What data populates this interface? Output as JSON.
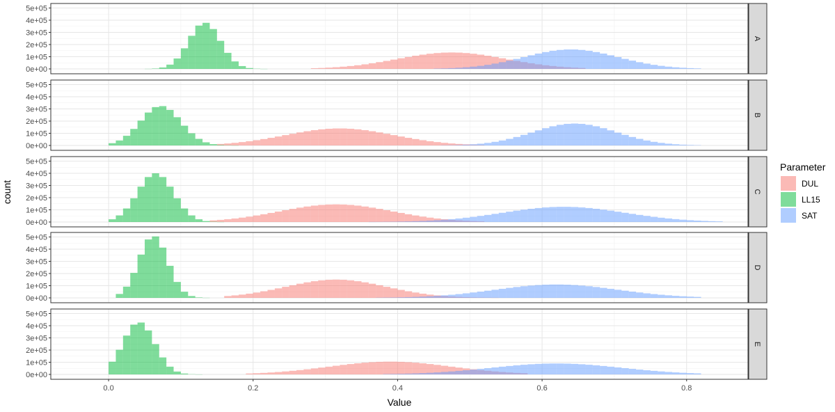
{
  "chart_data": {
    "type": "histogram",
    "xlabel": "Value",
    "ylabel": "count",
    "xlim": [
      -0.08,
      0.885
    ],
    "ylim": [
      0,
      520000
    ],
    "x_ticks": [
      0.0,
      0.2,
      0.4,
      0.6,
      0.8
    ],
    "x_tick_labels": [
      "0.0",
      "0.2",
      "0.4",
      "0.6",
      "0.8"
    ],
    "y_ticks": [
      0,
      100000,
      200000,
      300000,
      400000,
      500000
    ],
    "y_tick_labels": [
      "0e+00",
      "1e+05",
      "2e+05",
      "3e+05",
      "4e+05",
      "5e+05"
    ],
    "bin_width": 0.01,
    "grid": true,
    "legend": {
      "title": "Parameter",
      "position": "right",
      "entries": [
        {
          "name": "DUL",
          "color": "#F8766D"
        },
        {
          "name": "LL15",
          "color": "#00BA38"
        },
        {
          "name": "SAT",
          "color": "#619CFF"
        }
      ]
    },
    "fill_alpha": 0.5,
    "facets": [
      {
        "label": "A",
        "series": [
          {
            "name": "DUL",
            "mean": 0.475,
            "sd": 0.075,
            "peak": 135000,
            "min": 0.285,
            "max": 0.655
          },
          {
            "name": "LL15",
            "mean": 0.133,
            "sd": 0.022,
            "peak": 380000,
            "min": 0.055,
            "max": 0.215
          },
          {
            "name": "SAT",
            "mean": 0.64,
            "sd": 0.065,
            "peak": 160000,
            "min": 0.455,
            "max": 0.815
          }
        ]
      },
      {
        "label": "B",
        "series": [
          {
            "name": "DUL",
            "mean": 0.32,
            "sd": 0.075,
            "peak": 140000,
            "min": 0.15,
            "max": 0.52
          },
          {
            "name": "LL15",
            "mean": 0.072,
            "sd": 0.028,
            "peak": 325000,
            "min": 0.005,
            "max": 0.185
          },
          {
            "name": "SAT",
            "mean": 0.645,
            "sd": 0.058,
            "peak": 180000,
            "min": 0.47,
            "max": 0.815
          }
        ]
      },
      {
        "label": "C",
        "series": [
          {
            "name": "DUL",
            "mean": 0.315,
            "sd": 0.078,
            "peak": 145000,
            "min": 0.14,
            "max": 0.52
          },
          {
            "name": "LL15",
            "mean": 0.065,
            "sd": 0.025,
            "peak": 400000,
            "min": 0.005,
            "max": 0.175
          },
          {
            "name": "SAT",
            "mean": 0.63,
            "sd": 0.085,
            "peak": 125000,
            "min": 0.36,
            "max": 0.845
          }
        ]
      },
      {
        "label": "D",
        "series": [
          {
            "name": "DUL",
            "mean": 0.315,
            "sd": 0.07,
            "peak": 150000,
            "min": 0.165,
            "max": 0.535
          },
          {
            "name": "LL15",
            "mean": 0.062,
            "sd": 0.02,
            "peak": 510000,
            "min": 0.015,
            "max": 0.145
          },
          {
            "name": "SAT",
            "mean": 0.62,
            "sd": 0.085,
            "peak": 110000,
            "min": 0.37,
            "max": 0.815
          }
        ]
      },
      {
        "label": "E",
        "series": [
          {
            "name": "DUL",
            "mean": 0.39,
            "sd": 0.085,
            "peak": 105000,
            "min": 0.195,
            "max": 0.575
          },
          {
            "name": "LL15",
            "mean": 0.042,
            "sd": 0.022,
            "peak": 430000,
            "min": 0.005,
            "max": 0.14
          },
          {
            "name": "SAT",
            "mean": 0.62,
            "sd": 0.09,
            "peak": 90000,
            "min": 0.38,
            "max": 0.82
          }
        ]
      }
    ]
  }
}
